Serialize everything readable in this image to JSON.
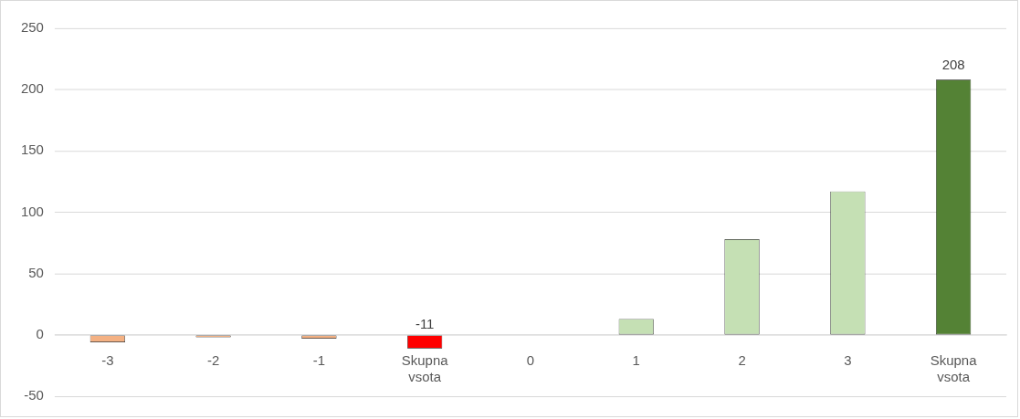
{
  "chart_data": {
    "type": "bar",
    "categories": [
      "-3",
      "-2",
      "-1",
      "Skupna vsota",
      "0",
      "1",
      "2",
      "3",
      "Skupna vsota"
    ],
    "values": [
      -6,
      -2,
      -3,
      -11,
      0,
      13,
      78,
      117,
      208
    ],
    "colors": [
      "#f4b183",
      "#f4b183",
      "#f4b183",
      "#ff0000",
      "#c5e0b4",
      "#c5e0b4",
      "#c5e0b4",
      "#c5e0b4",
      "#548235"
    ],
    "value_labels": [
      null,
      null,
      null,
      "-11",
      null,
      null,
      null,
      null,
      "208"
    ],
    "ylim": [
      -50,
      250
    ],
    "yticks": [
      -50,
      0,
      50,
      100,
      150,
      200,
      250
    ],
    "grid": "y",
    "legend": false
  }
}
